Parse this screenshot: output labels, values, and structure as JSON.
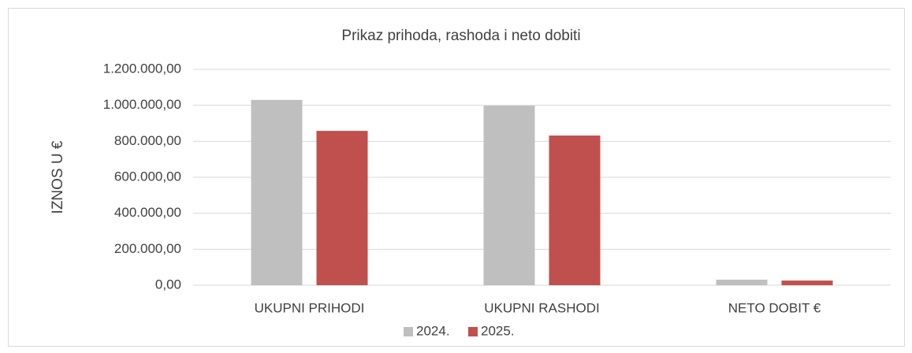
{
  "chart_data": {
    "type": "bar",
    "title": "Prikaz prihoda, rashoda i neto dobiti",
    "y_label": "IZNOS U €",
    "categories": [
      "UKUPNI PRIHODI",
      "UKUPNI RASHODI",
      "NETO DOBIT  €"
    ],
    "series": [
      {
        "name": "2024.",
        "color": "#bfbfbf",
        "values": [
          1030000,
          998000,
          31000
        ]
      },
      {
        "name": "2025.",
        "color": "#c0504d",
        "values": [
          858000,
          832000,
          26000
        ]
      }
    ],
    "ylim": [
      0,
      1200000
    ],
    "yticks": [
      {
        "value": 0,
        "label": "0,00"
      },
      {
        "value": 200000,
        "label": "200.000,00"
      },
      {
        "value": 400000,
        "label": "400.000,00"
      },
      {
        "value": 600000,
        "label": "600.000,00"
      },
      {
        "value": 800000,
        "label": "800.000,00"
      },
      {
        "value": 1000000,
        "label": "1.000.000,00"
      },
      {
        "value": 1200000,
        "label": "1.200.000,00"
      }
    ],
    "grid": true,
    "legend": "bottom"
  }
}
